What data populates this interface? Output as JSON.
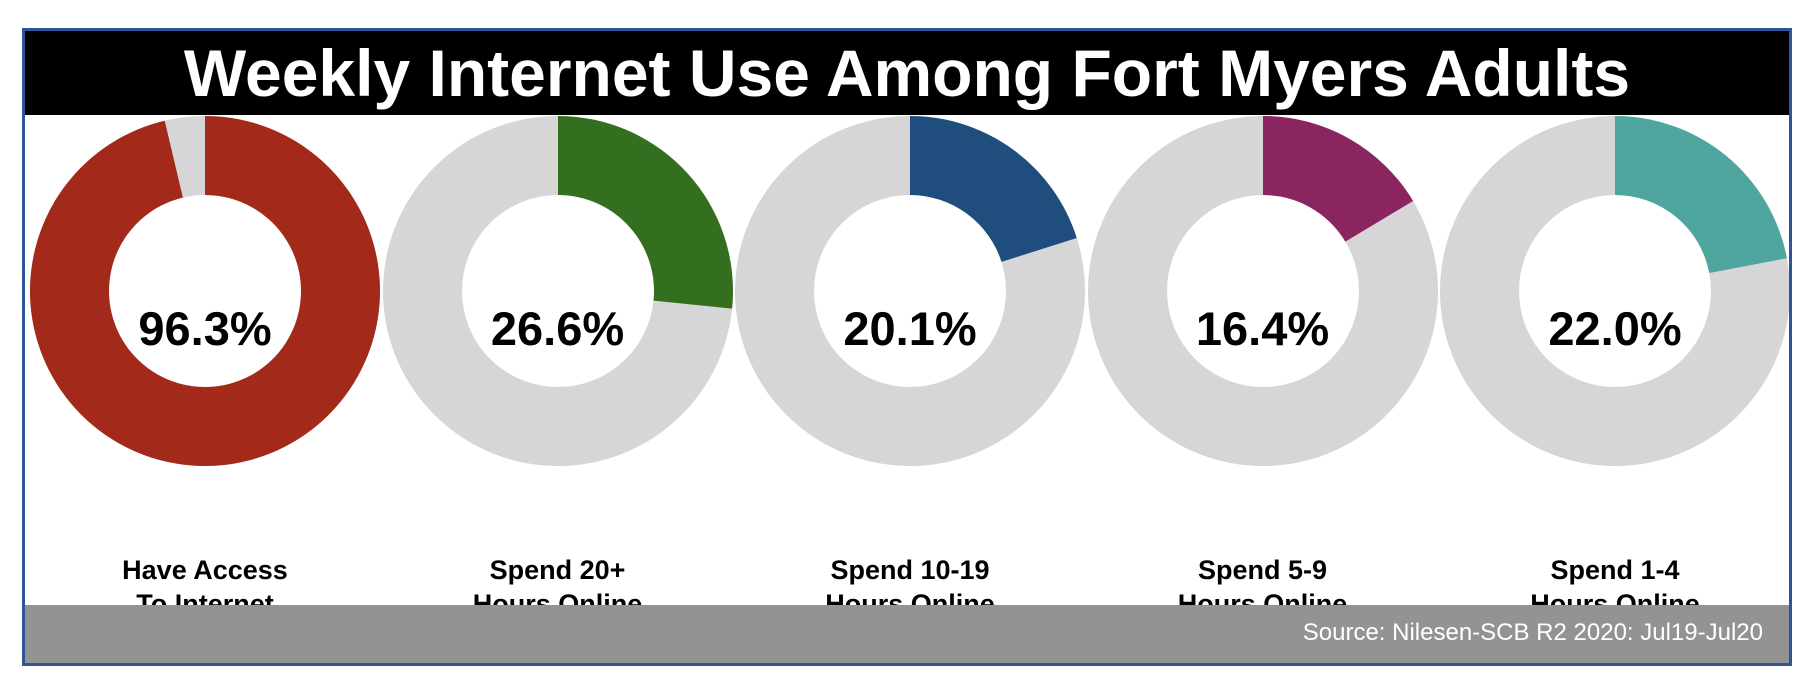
{
  "title": "Weekly Internet Use Among Fort Myers Adults",
  "source": "Source: Nilesen-SCB R2 2020: Jul19-Jul20",
  "colors": {
    "track": "#d6d6d6",
    "frame": "#2f5597",
    "footer": "#939393"
  },
  "chart_data": {
    "type": "pie",
    "variant": "donut",
    "charts": [
      {
        "label_line1": "Have Access",
        "label_line2": "To Internet",
        "value": 96.3,
        "display": "96.3%",
        "color": "#a32a1a"
      },
      {
        "label_line1": "Spend 20+",
        "label_line2": "Hours Online",
        "value": 26.6,
        "display": "26.6%",
        "color": "#336f1e"
      },
      {
        "label_line1": "Spend 10-19",
        "label_line2": "Hours Online",
        "value": 20.1,
        "display": "20.1%",
        "color": "#1f4e7e"
      },
      {
        "label_line1": "Spend 5-9",
        "label_line2": "Hours Online",
        "value": 16.4,
        "display": "16.4%",
        "color": "#8a2560"
      },
      {
        "label_line1": "Spend 1-4",
        "label_line2": "Hours Online",
        "value": 22.0,
        "display": "22.0%",
        "color": "#4fa69e"
      }
    ]
  }
}
